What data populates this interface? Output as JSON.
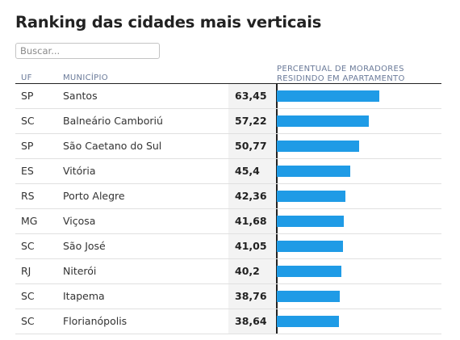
{
  "title": "Ranking das cidades mais verticais",
  "search": {
    "placeholder": "Buscar..."
  },
  "columns": {
    "uf": "UF",
    "municipio": "MUNICÍPIO",
    "percentual": "PERCENTUAL DE MORADORES RESIDINDO EM APARTAMENTO"
  },
  "bar_color": "#1f9be6",
  "bar_max": 100,
  "rows": [
    {
      "uf": "SP",
      "municipio": "Santos",
      "valor": "63,45",
      "pct": 63.45
    },
    {
      "uf": "SC",
      "municipio": "Balneário Camboriú",
      "valor": "57,22",
      "pct": 57.22
    },
    {
      "uf": "SP",
      "municipio": "São Caetano do Sul",
      "valor": "50,77",
      "pct": 50.77
    },
    {
      "uf": "ES",
      "municipio": "Vitória",
      "valor": "45,4",
      "pct": 45.4
    },
    {
      "uf": "RS",
      "municipio": "Porto Alegre",
      "valor": "42,36",
      "pct": 42.36
    },
    {
      "uf": "MG",
      "municipio": "Viçosa",
      "valor": "41,68",
      "pct": 41.68
    },
    {
      "uf": "SC",
      "municipio": "São José",
      "valor": "41,05",
      "pct": 41.05
    },
    {
      "uf": "RJ",
      "municipio": "Niterói",
      "valor": "40,2",
      "pct": 40.2
    },
    {
      "uf": "SC",
      "municipio": "Itapema",
      "valor": "38,76",
      "pct": 38.76
    },
    {
      "uf": "SC",
      "municipio": "Florianópolis",
      "valor": "38,64",
      "pct": 38.64
    }
  ]
}
